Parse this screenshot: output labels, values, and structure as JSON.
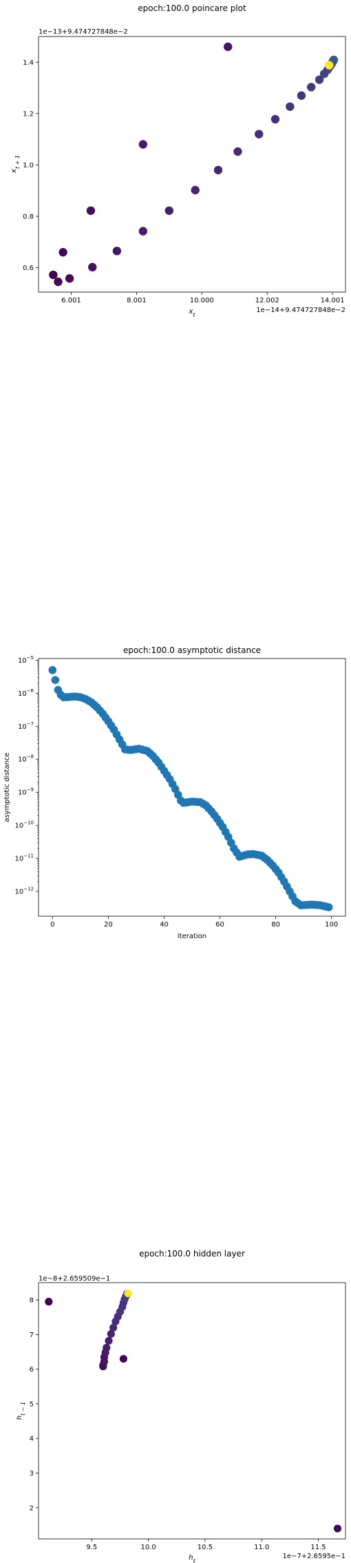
{
  "chart_data": [
    {
      "type": "scatter",
      "title": "epoch:100.0 poincare plot",
      "xlabel": "x_t",
      "ylabel": "x_{t+1}",
      "x_offset_label": "1e−14+9.474727848e−2",
      "y_offset_label": "1e−13+9.474727848e−2",
      "x_ticks": [
        "6.001",
        "8.001",
        "10.000",
        "12.002",
        "14.001"
      ],
      "y_ticks": [
        "0.6",
        "0.8",
        "1.0",
        "1.2",
        "1.4"
      ],
      "xlim": [
        5.0,
        14.4
      ],
      "ylim": [
        0.505,
        1.5
      ],
      "x_tick_values": [
        6.001,
        8.001,
        10.0,
        12.002,
        14.001
      ],
      "y_tick_values": [
        0.6,
        0.8,
        1.0,
        1.2,
        1.4
      ],
      "colormap": [
        "#440154",
        "#472d7b",
        "#3b528b",
        "#2c728e",
        "#21918c",
        "#28ae80",
        "#5ec962",
        "#addc30",
        "#fde725"
      ],
      "points": [
        {
          "x": 5.45,
          "y": 0.572,
          "c": 0.0
        },
        {
          "x": 5.6,
          "y": 0.545,
          "c": 0.01
        },
        {
          "x": 5.75,
          "y": 0.66,
          "c": 0.02
        },
        {
          "x": 5.95,
          "y": 0.558,
          "c": 0.03
        },
        {
          "x": 6.6,
          "y": 0.822,
          "c": 0.04
        },
        {
          "x": 6.65,
          "y": 0.602,
          "c": 0.05
        },
        {
          "x": 7.4,
          "y": 0.665,
          "c": 0.06
        },
        {
          "x": 8.2,
          "y": 1.08,
          "c": 0.07
        },
        {
          "x": 8.2,
          "y": 0.742,
          "c": 0.08
        },
        {
          "x": 9.0,
          "y": 0.822,
          "c": 0.09
        },
        {
          "x": 9.8,
          "y": 0.902,
          "c": 0.1
        },
        {
          "x": 10.5,
          "y": 0.98,
          "c": 0.11
        },
        {
          "x": 10.8,
          "y": 1.46,
          "c": 0.06
        },
        {
          "x": 11.1,
          "y": 1.052,
          "c": 0.12
        },
        {
          "x": 11.75,
          "y": 1.12,
          "c": 0.13
        },
        {
          "x": 12.25,
          "y": 1.178,
          "c": 0.14
        },
        {
          "x": 12.7,
          "y": 1.227,
          "c": 0.15
        },
        {
          "x": 13.05,
          "y": 1.27,
          "c": 0.16
        },
        {
          "x": 13.35,
          "y": 1.303,
          "c": 0.17
        },
        {
          "x": 13.6,
          "y": 1.332,
          "c": 0.18
        },
        {
          "x": 13.75,
          "y": 1.355,
          "c": 0.19
        },
        {
          "x": 13.85,
          "y": 1.37,
          "c": 0.2
        },
        {
          "x": 13.9,
          "y": 1.38,
          "c": 0.21
        },
        {
          "x": 13.95,
          "y": 1.388,
          "c": 0.22
        },
        {
          "x": 13.98,
          "y": 1.395,
          "c": 0.23
        },
        {
          "x": 14.0,
          "y": 1.4,
          "c": 0.24
        },
        {
          "x": 14.02,
          "y": 1.404,
          "c": 0.25
        },
        {
          "x": 14.03,
          "y": 1.407,
          "c": 0.26
        },
        {
          "x": 14.04,
          "y": 1.409,
          "c": 0.27
        },
        {
          "x": 13.9,
          "y": 1.388,
          "c": 1.0
        }
      ]
    },
    {
      "type": "scatter",
      "title": "epoch:100.0 asymptotic distance",
      "xlabel": "iteration",
      "ylabel": "asymptotic distance",
      "yscale": "log",
      "x_ticks": [
        "0",
        "20",
        "40",
        "60",
        "80",
        "100"
      ],
      "x_tick_values": [
        0,
        20,
        40,
        60,
        80,
        100
      ],
      "y_ticks": [
        "10^{-12}",
        "10^{-11}",
        "10^{-10}",
        "10^{-9}",
        "10^{-8}",
        "10^{-7}",
        "10^{-6}",
        "10^{-5}"
      ],
      "y_tick_exponents": [
        -12,
        -11,
        -10,
        -9,
        -8,
        -7,
        -6,
        -5
      ],
      "xlim": [
        -5,
        105
      ],
      "ylim_log10": [
        -12.75,
        -4.95
      ],
      "color": "#1f77b4",
      "anchors": [
        [
          0,
          -5.3
        ],
        [
          1,
          -5.6
        ],
        [
          2,
          -5.9
        ],
        [
          3,
          -6.05
        ],
        [
          4,
          -6.12
        ],
        [
          5,
          -6.12
        ],
        [
          8,
          -6.1
        ],
        [
          10,
          -6.12
        ],
        [
          12,
          -6.18
        ],
        [
          14,
          -6.28
        ],
        [
          16,
          -6.43
        ],
        [
          18,
          -6.62
        ],
        [
          20,
          -6.85
        ],
        [
          22,
          -7.1
        ],
        [
          24,
          -7.4
        ],
        [
          26,
          -7.7
        ],
        [
          28,
          -7.72
        ],
        [
          31,
          -7.68
        ],
        [
          34,
          -7.75
        ],
        [
          36,
          -7.9
        ],
        [
          38,
          -8.1
        ],
        [
          40,
          -8.35
        ],
        [
          42,
          -8.6
        ],
        [
          44,
          -8.9
        ],
        [
          46,
          -9.25
        ],
        [
          47,
          -9.32
        ],
        [
          50,
          -9.28
        ],
        [
          53,
          -9.3
        ],
        [
          55,
          -9.4
        ],
        [
          57,
          -9.58
        ],
        [
          59,
          -9.8
        ],
        [
          61,
          -10.05
        ],
        [
          63,
          -10.35
        ],
        [
          65,
          -10.7
        ],
        [
          67,
          -10.95
        ],
        [
          70,
          -10.88
        ],
        [
          72,
          -10.87
        ],
        [
          75,
          -10.92
        ],
        [
          77,
          -11.05
        ],
        [
          79,
          -11.22
        ],
        [
          81,
          -11.43
        ],
        [
          83,
          -11.7
        ],
        [
          85,
          -12.0
        ],
        [
          87,
          -12.3
        ],
        [
          89,
          -12.42
        ],
        [
          93,
          -12.4
        ],
        [
          96,
          -12.42
        ],
        [
          99,
          -12.48
        ]
      ]
    },
    {
      "type": "scatter",
      "title": "epoch:100.0 hidden layer",
      "xlabel": "h_t",
      "ylabel": "h_{t+1}",
      "x_offset_label": "1e−7+2.6595e−1",
      "y_offset_label": "1e−8+2.659509e−1",
      "x_ticks": [
        "9.5",
        "10.0",
        "10.5",
        "11.0",
        "11.5"
      ],
      "x_tick_values": [
        9.5,
        10.0,
        10.5,
        11.0,
        11.5
      ],
      "y_ticks": [
        "2",
        "3",
        "4",
        "5",
        "6",
        "7",
        "8"
      ],
      "y_tick_values": [
        2,
        3,
        4,
        5,
        6,
        7,
        8
      ],
      "xlim": [
        9.03,
        11.74
      ],
      "ylim": [
        1.1,
        8.5
      ],
      "points": [
        {
          "x": 9.12,
          "y": 7.95,
          "c": 0.0
        },
        {
          "x": 11.67,
          "y": 1.4,
          "c": 0.01
        },
        {
          "x": 9.78,
          "y": 6.3,
          "c": 0.02
        },
        {
          "x": 9.6,
          "y": 6.08,
          "c": 0.03
        },
        {
          "x": 9.6,
          "y": 6.12,
          "c": 0.04
        },
        {
          "x": 9.61,
          "y": 6.22,
          "c": 0.05
        },
        {
          "x": 9.61,
          "y": 6.35,
          "c": 0.06
        },
        {
          "x": 9.62,
          "y": 6.48,
          "c": 0.07
        },
        {
          "x": 9.63,
          "y": 6.62,
          "c": 0.08
        },
        {
          "x": 9.65,
          "y": 6.82,
          "c": 0.09
        },
        {
          "x": 9.67,
          "y": 7.02,
          "c": 0.1
        },
        {
          "x": 9.69,
          "y": 7.2,
          "c": 0.11
        },
        {
          "x": 9.71,
          "y": 7.38,
          "c": 0.12
        },
        {
          "x": 9.73,
          "y": 7.52,
          "c": 0.13
        },
        {
          "x": 9.75,
          "y": 7.66,
          "c": 0.14
        },
        {
          "x": 9.77,
          "y": 7.8,
          "c": 0.15
        },
        {
          "x": 9.78,
          "y": 7.92,
          "c": 0.16
        },
        {
          "x": 9.79,
          "y": 8.02,
          "c": 0.17
        },
        {
          "x": 9.8,
          "y": 8.1,
          "c": 0.18
        },
        {
          "x": 9.81,
          "y": 8.15,
          "c": 0.19
        },
        {
          "x": 9.81,
          "y": 8.18,
          "c": 0.2
        },
        {
          "x": 9.82,
          "y": 8.19,
          "c": 1.0
        }
      ]
    }
  ]
}
